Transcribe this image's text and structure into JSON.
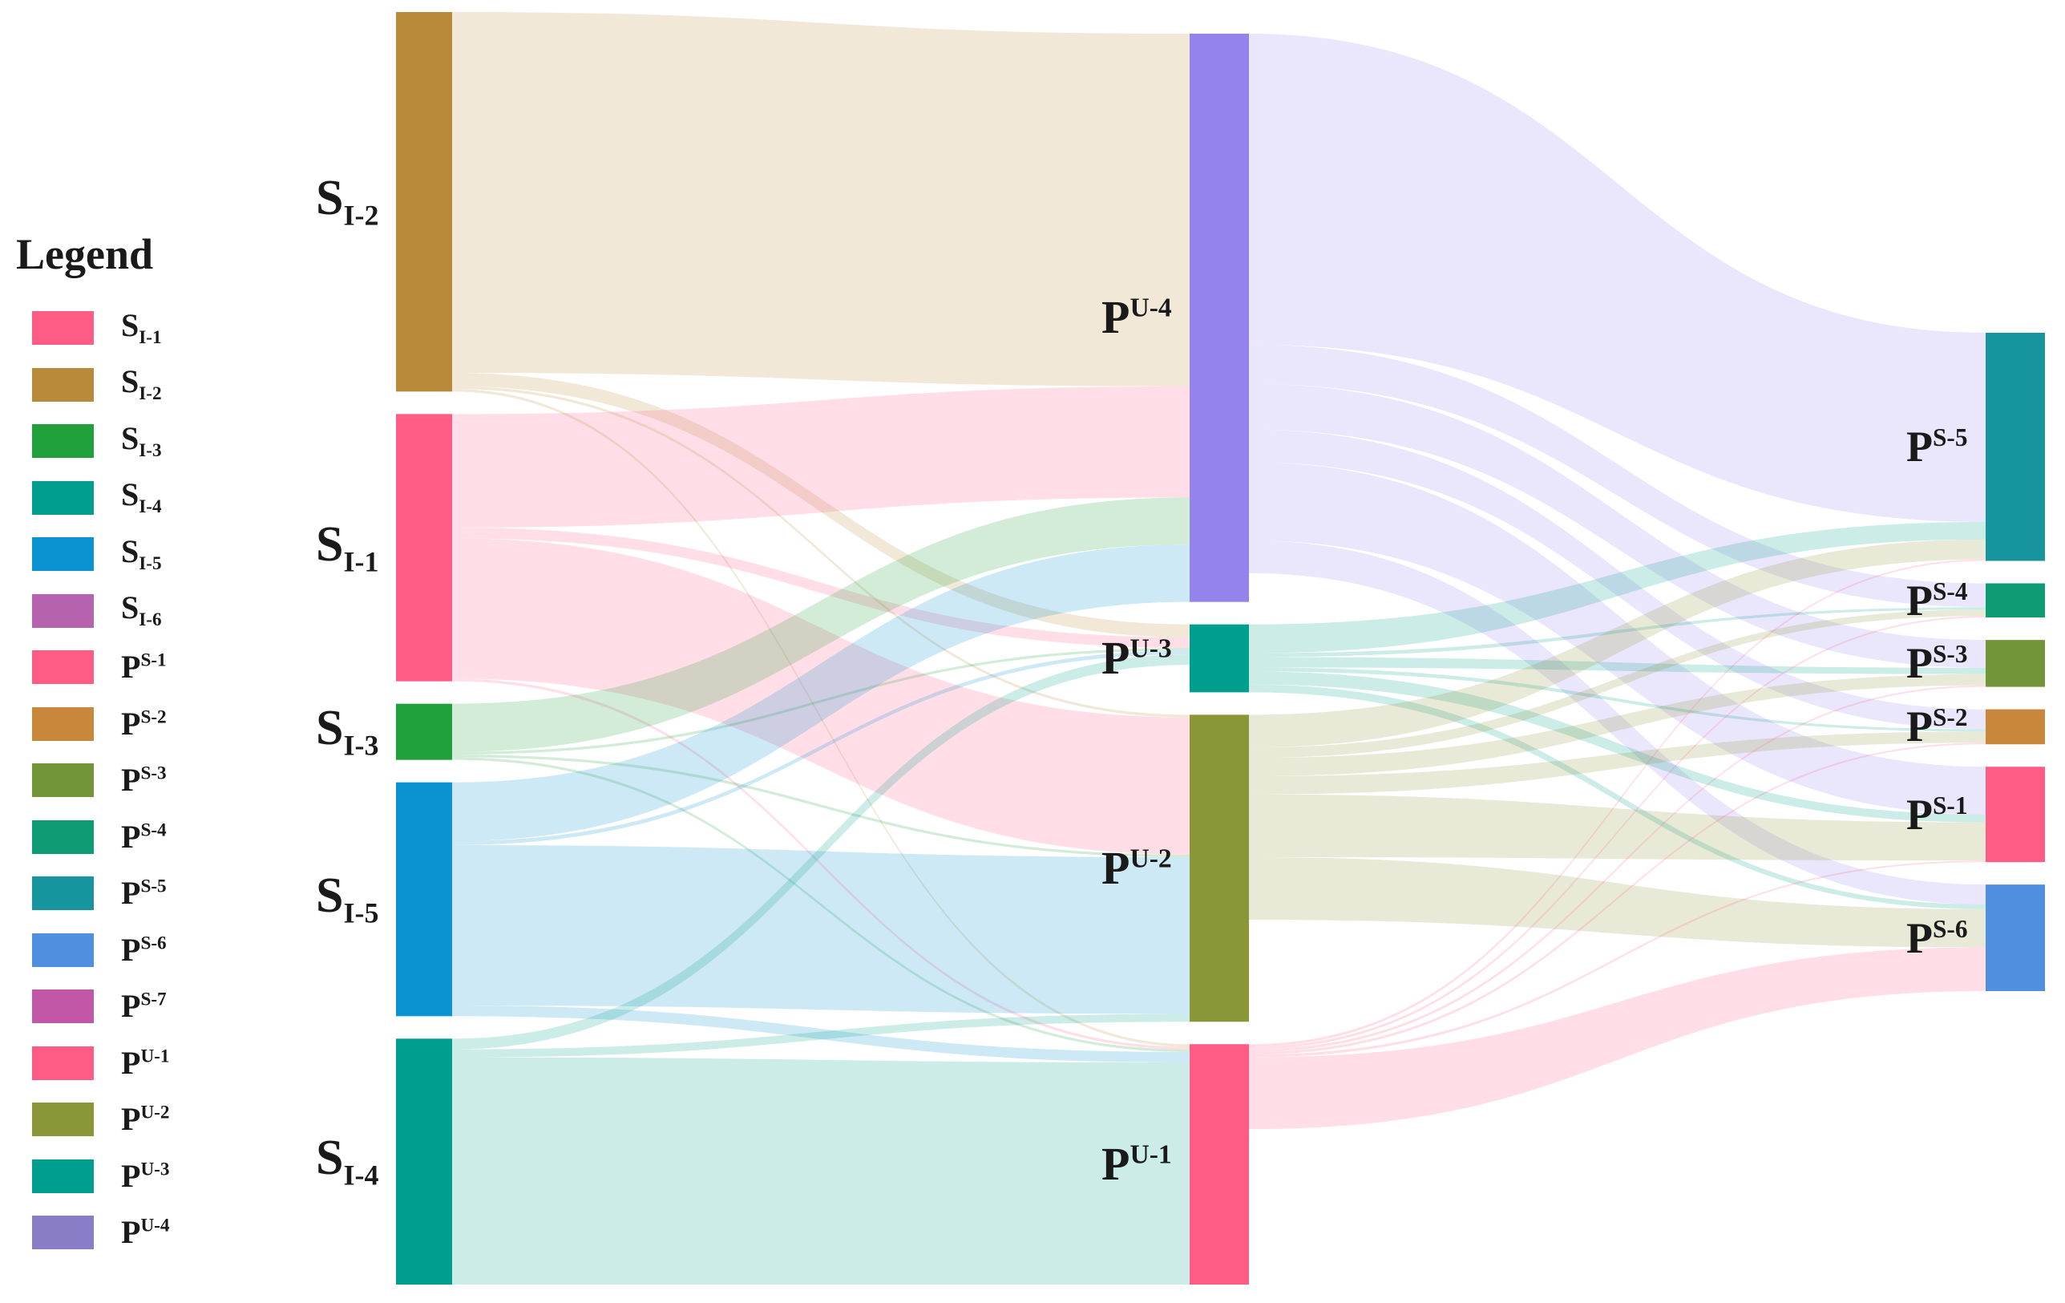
{
  "legend": {
    "title": "Legend",
    "items": [
      {
        "base": "S",
        "sub": "I-1",
        "color": "#FF5C85"
      },
      {
        "base": "S",
        "sub": "I-2",
        "color": "#B88A3A"
      },
      {
        "base": "S",
        "sub": "I-3",
        "color": "#1FA03A"
      },
      {
        "base": "S",
        "sub": "I-4",
        "color": "#009E8E"
      },
      {
        "base": "S",
        "sub": "I-5",
        "color": "#0A93D0"
      },
      {
        "base": "S",
        "sub": "I-6",
        "color": "#B762AE"
      },
      {
        "base": "P",
        "sup": "S-1",
        "color": "#FF5C85"
      },
      {
        "base": "P",
        "sup": "S-2",
        "color": "#C8873A"
      },
      {
        "base": "P",
        "sup": "S-3",
        "color": "#73953A"
      },
      {
        "base": "P",
        "sup": "S-4",
        "color": "#0E9C74"
      },
      {
        "base": "P",
        "sup": "S-5",
        "color": "#16959E"
      },
      {
        "base": "P",
        "sup": "S-6",
        "color": "#4F8FE0"
      },
      {
        "base": "P",
        "sup": "S-7",
        "color": "#C157A6"
      },
      {
        "base": "P",
        "sup": "U-1",
        "color": "#FF5C85"
      },
      {
        "base": "P",
        "sup": "U-2",
        "color": "#8A9638"
      },
      {
        "base": "P",
        "sup": "U-3",
        "color": "#009E8E"
      },
      {
        "base": "P",
        "sup": "U-4",
        "color": "#8A7DC8"
      }
    ]
  },
  "sankey": {
    "nodes": [
      {
        "id": "SI-2",
        "base": "S",
        "sub": "I-2",
        "column": 0,
        "color": "#B88A3A"
      },
      {
        "id": "SI-1",
        "base": "S",
        "sub": "I-1",
        "column": 0,
        "color": "#FF5C85"
      },
      {
        "id": "SI-3",
        "base": "S",
        "sub": "I-3",
        "column": 0,
        "color": "#1FA03A"
      },
      {
        "id": "SI-5",
        "base": "S",
        "sub": "I-5",
        "column": 0,
        "color": "#0A93D0"
      },
      {
        "id": "SI-4",
        "base": "S",
        "sub": "I-4",
        "column": 0,
        "color": "#009E8E"
      },
      {
        "id": "PU-4",
        "base": "P",
        "sup": "U-4",
        "column": 1,
        "color": "#9483EA"
      },
      {
        "id": "PU-3",
        "base": "P",
        "sup": "U-3",
        "column": 1,
        "color": "#009E8E"
      },
      {
        "id": "PU-2",
        "base": "P",
        "sup": "U-2",
        "column": 1,
        "color": "#8A9638"
      },
      {
        "id": "PU-1",
        "base": "P",
        "sup": "U-1",
        "column": 1,
        "color": "#FF5C85"
      },
      {
        "id": "PS-5",
        "base": "P",
        "sup": "S-5",
        "column": 2,
        "color": "#16959E"
      },
      {
        "id": "PS-4",
        "base": "P",
        "sup": "S-4",
        "column": 2,
        "color": "#0E9C74"
      },
      {
        "id": "PS-3",
        "base": "P",
        "sup": "S-3",
        "column": 2,
        "color": "#73953A"
      },
      {
        "id": "PS-2",
        "base": "P",
        "sup": "S-2",
        "column": 2,
        "color": "#C8873A"
      },
      {
        "id": "PS-1",
        "base": "P",
        "sup": "S-1",
        "column": 2,
        "color": "#FF5C85"
      },
      {
        "id": "PS-6",
        "base": "P",
        "sup": "S-6",
        "column": 2,
        "color": "#4F8FE0"
      }
    ],
    "links": [
      {
        "source": "SI-2",
        "target": "PU-4",
        "value": 270
      },
      {
        "source": "SI-2",
        "target": "PU-3",
        "value": 10
      },
      {
        "source": "SI-2",
        "target": "PU-2",
        "value": 2
      },
      {
        "source": "SI-2",
        "target": "PU-1",
        "value": 2
      },
      {
        "source": "SI-1",
        "target": "PU-4",
        "value": 85
      },
      {
        "source": "SI-1",
        "target": "PU-3",
        "value": 8
      },
      {
        "source": "SI-1",
        "target": "PU-2",
        "value": 105
      },
      {
        "source": "SI-1",
        "target": "PU-1",
        "value": 2
      },
      {
        "source": "SI-3",
        "target": "PU-4",
        "value": 36
      },
      {
        "source": "SI-3",
        "target": "PU-3",
        "value": 2
      },
      {
        "source": "SI-3",
        "target": "PU-2",
        "value": 2
      },
      {
        "source": "SI-3",
        "target": "PU-1",
        "value": 2
      },
      {
        "source": "SI-5",
        "target": "PU-4",
        "value": 44
      },
      {
        "source": "SI-5",
        "target": "PU-3",
        "value": 3
      },
      {
        "source": "SI-5",
        "target": "PU-2",
        "value": 120
      },
      {
        "source": "SI-5",
        "target": "PU-1",
        "value": 8
      },
      {
        "source": "SI-4",
        "target": "PU-3",
        "value": 4
      },
      {
        "source": "SI-4",
        "target": "PU-3",
        "value": 4
      },
      {
        "source": "SI-4",
        "target": "PU-2",
        "value": 6
      },
      {
        "source": "SI-4",
        "target": "PU-1",
        "value": 170
      },
      {
        "source": "PU-4",
        "target": "PS-5",
        "value": 238
      },
      {
        "source": "PU-4",
        "target": "PS-4",
        "value": 30
      },
      {
        "source": "PU-4",
        "target": "PS-3",
        "value": 35
      },
      {
        "source": "PU-4",
        "target": "PS-2",
        "value": 25
      },
      {
        "source": "PU-4",
        "target": "PS-1",
        "value": 60
      },
      {
        "source": "PU-4",
        "target": "PS-6",
        "value": 25
      },
      {
        "source": "PU-3",
        "target": "PS-5",
        "value": 22
      },
      {
        "source": "PU-3",
        "target": "PS-4",
        "value": 3
      },
      {
        "source": "PU-3",
        "target": "PS-3",
        "value": 8
      },
      {
        "source": "PU-3",
        "target": "PS-2",
        "value": 3
      },
      {
        "source": "PU-3",
        "target": "PS-1",
        "value": 10
      },
      {
        "source": "PU-3",
        "target": "PS-6",
        "value": 6
      },
      {
        "source": "PU-2",
        "target": "PS-5",
        "value": 25
      },
      {
        "source": "PU-2",
        "target": "PS-4",
        "value": 8
      },
      {
        "source": "PU-2",
        "target": "PS-3",
        "value": 14
      },
      {
        "source": "PU-2",
        "target": "PS-2",
        "value": 14
      },
      {
        "source": "PU-2",
        "target": "PS-1",
        "value": 48
      },
      {
        "source": "PU-2",
        "target": "PS-6",
        "value": 48
      },
      {
        "source": "PU-1",
        "target": "PS-5",
        "value": 2
      },
      {
        "source": "PU-1",
        "target": "PS-4",
        "value": 2
      },
      {
        "source": "PU-1",
        "target": "PS-3",
        "value": 2
      },
      {
        "source": "PU-1",
        "target": "PS-2",
        "value": 2
      },
      {
        "source": "PU-1",
        "target": "PS-1",
        "value": 2
      },
      {
        "source": "PU-1",
        "target": "PS-6",
        "value": 55
      }
    ]
  }
}
